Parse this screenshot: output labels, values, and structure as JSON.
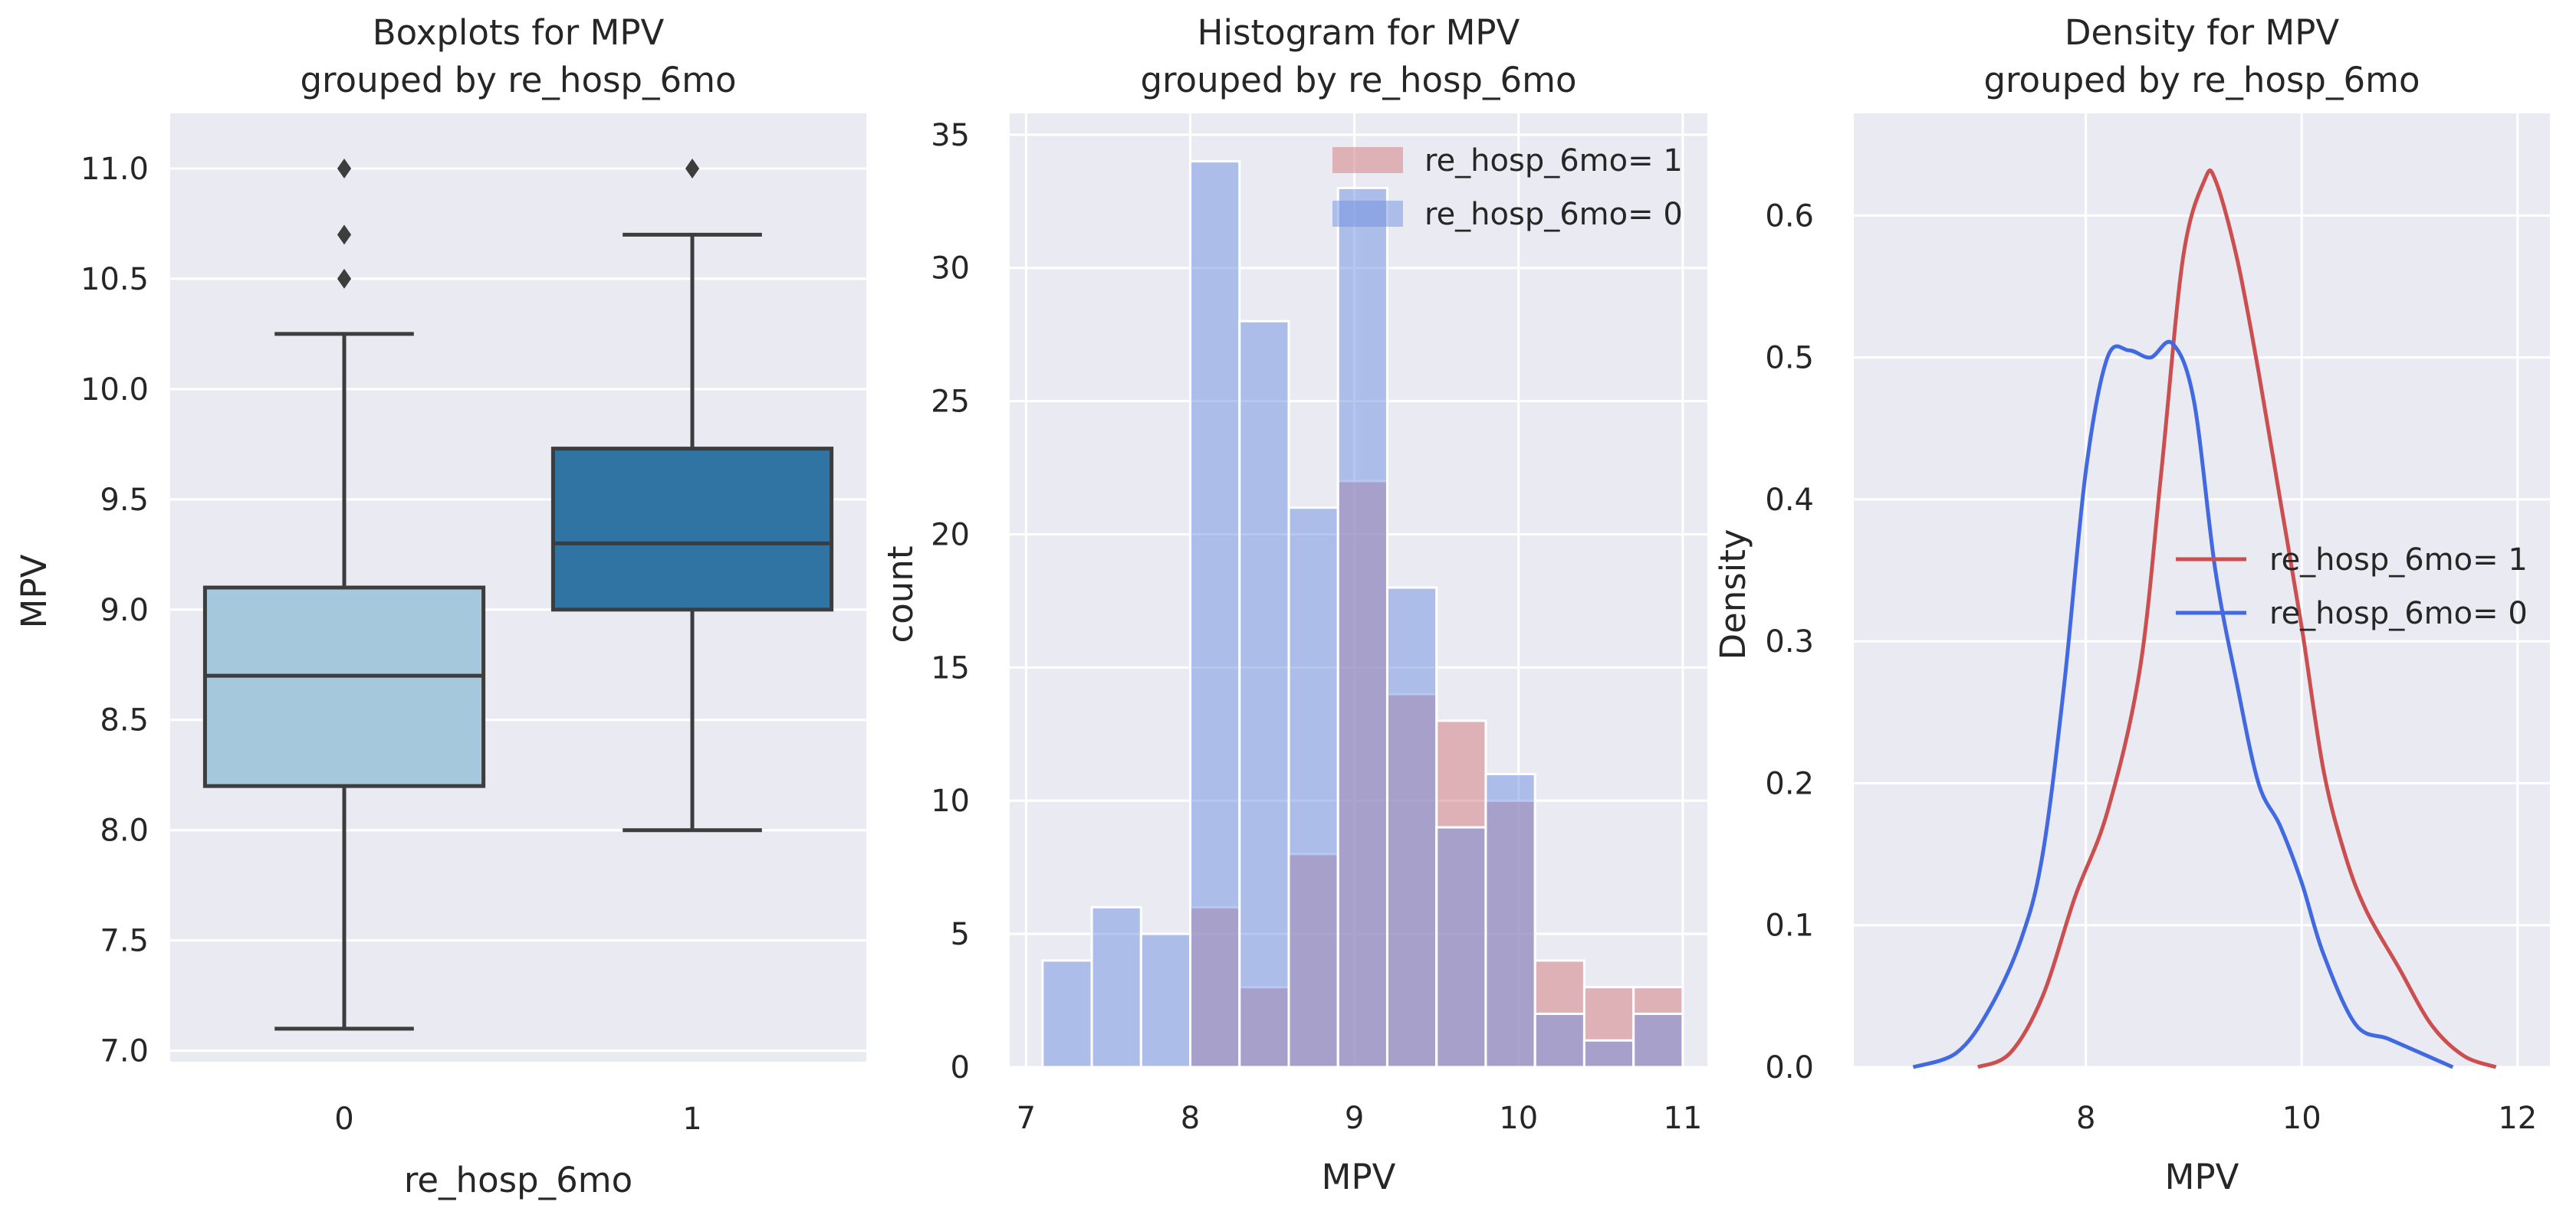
{
  "chart_data": [
    {
      "type": "box",
      "title": "Boxplots for MPV",
      "subtitle": "grouped by re_hosp_6mo",
      "xlabel": "re_hosp_6mo",
      "ylabel": "MPV",
      "ylim": [
        6.95,
        11.25
      ],
      "yticks": [
        "7.0",
        "7.5",
        "8.0",
        "8.5",
        "9.0",
        "9.5",
        "10.0",
        "10.5",
        "11.0"
      ],
      "categories": [
        "0",
        "1"
      ],
      "boxes": [
        {
          "category": "0",
          "whisker_low": 7.1,
          "q1": 8.2,
          "median": 8.7,
          "q3": 9.1,
          "whisker_high": 10.25,
          "outliers": [
            10.5,
            10.7,
            11.0
          ],
          "color": "#a6c8dc"
        },
        {
          "category": "1",
          "whisker_low": 8.0,
          "q1": 9.0,
          "median": 9.3,
          "q3": 9.73,
          "whisker_high": 10.7,
          "outliers": [
            11.0
          ],
          "color": "#2f74a3"
        }
      ]
    },
    {
      "type": "histogram",
      "title": "Histogram for MPV",
      "subtitle": "grouped by re_hosp_6mo",
      "xlabel": "MPV",
      "ylabel": "count",
      "xlim": [
        6.9,
        11.15
      ],
      "ylim": [
        0,
        35.8
      ],
      "xticks": [
        "7",
        "8",
        "9",
        "10",
        "11"
      ],
      "yticks": [
        "0",
        "5",
        "10",
        "15",
        "20",
        "25",
        "30",
        "35"
      ],
      "bin_edges": [
        7.1,
        7.4,
        7.7,
        8.0,
        8.3,
        8.6,
        8.9,
        9.2,
        9.5,
        9.8,
        10.1,
        10.4,
        10.7,
        11.0
      ],
      "series": [
        {
          "name": "re_hosp_6mo= 1",
          "color": "#d0787a",
          "values": [
            0,
            0,
            0,
            6,
            3,
            8,
            22,
            14,
            13,
            10,
            4,
            3,
            3
          ]
        },
        {
          "name": "re_hosp_6mo= 0",
          "color": "#6f8fe0",
          "values": [
            4,
            6,
            5,
            34,
            28,
            21,
            33,
            18,
            9,
            11,
            2,
            1,
            2
          ]
        }
      ]
    },
    {
      "type": "density",
      "title": "Density for MPV",
      "subtitle": "grouped by re_hosp_6mo",
      "xlabel": "MPV",
      "ylabel": "Density",
      "xlim": [
        5.85,
        12.3
      ],
      "ylim": [
        0,
        0.672
      ],
      "xticks": [
        "8",
        "10",
        "12"
      ],
      "yticks": [
        "0.0",
        "0.1",
        "0.2",
        "0.3",
        "0.4",
        "0.5",
        "0.6"
      ],
      "series": [
        {
          "name": "re_hosp_6mo= 1",
          "color": "#cc4f4f",
          "x": [
            7.0,
            7.3,
            7.6,
            7.9,
            8.2,
            8.5,
            8.7,
            8.9,
            9.1,
            9.2,
            9.4,
            9.6,
            9.8,
            10.0,
            10.2,
            10.4,
            10.6,
            10.9,
            11.2,
            11.5,
            11.8
          ],
          "y": [
            0.0,
            0.01,
            0.05,
            0.12,
            0.18,
            0.28,
            0.42,
            0.57,
            0.625,
            0.625,
            0.57,
            0.49,
            0.4,
            0.31,
            0.21,
            0.15,
            0.11,
            0.07,
            0.03,
            0.008,
            0.0
          ]
        },
        {
          "name": "re_hosp_6mo= 0",
          "color": "#4169e1",
          "x": [
            6.4,
            6.8,
            7.1,
            7.4,
            7.6,
            7.8,
            8.0,
            8.2,
            8.4,
            8.6,
            8.8,
            9.0,
            9.2,
            9.4,
            9.6,
            9.8,
            10.0,
            10.2,
            10.5,
            10.8,
            11.1,
            11.4
          ],
          "y": [
            0.0,
            0.01,
            0.04,
            0.09,
            0.15,
            0.27,
            0.42,
            0.5,
            0.505,
            0.5,
            0.51,
            0.47,
            0.35,
            0.27,
            0.2,
            0.17,
            0.13,
            0.08,
            0.03,
            0.02,
            0.01,
            0.0
          ]
        }
      ]
    }
  ]
}
